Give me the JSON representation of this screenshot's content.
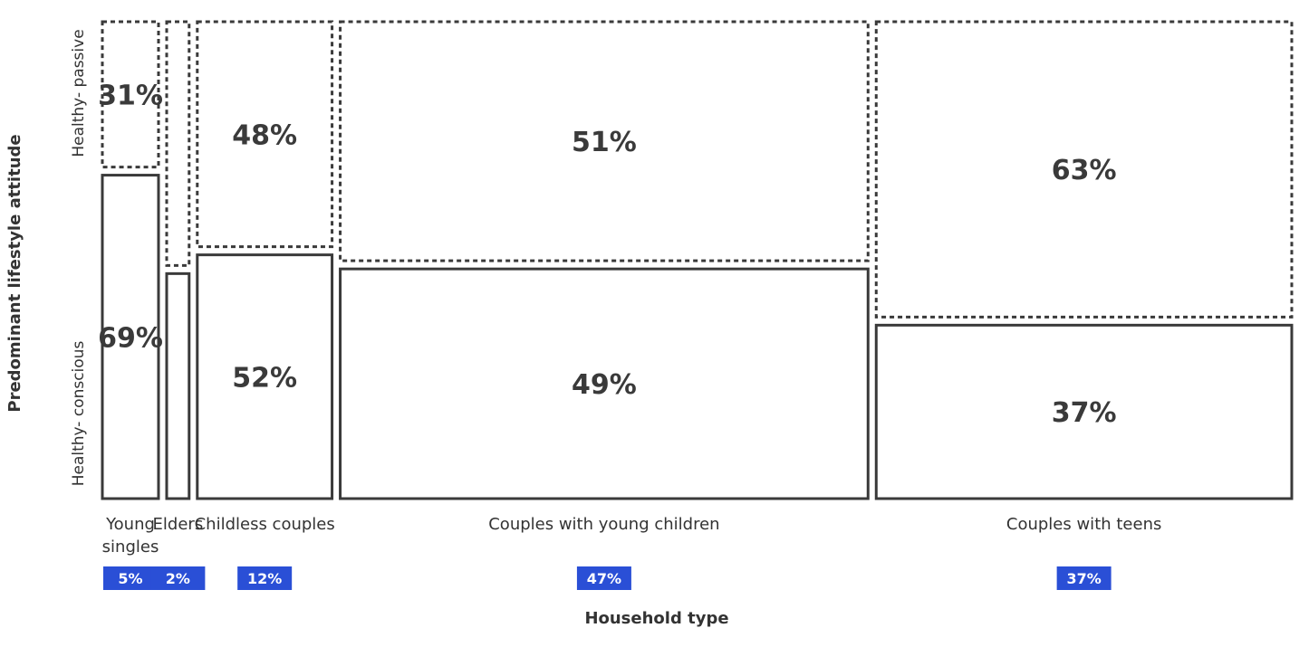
{
  "chart_data": {
    "type": "mosaic",
    "xlabel": "Household type",
    "ylabel": "Predominant lifestyle attitude",
    "rows": [
      "Healthy- conscious",
      "Healthy- passive"
    ],
    "categories": [
      {
        "name": "Young singles",
        "name_lines": [
          "Young",
          "singles"
        ],
        "share": 5,
        "share_label": "5%",
        "conscious": 69,
        "passive": 31
      },
      {
        "name": "Elders",
        "name_lines": [
          "Elders"
        ],
        "share": 2,
        "share_label": "2%",
        "conscious": 48,
        "passive": 52
      },
      {
        "name": "Childless couples",
        "name_lines": [
          "Childless couples"
        ],
        "share": 12,
        "share_label": "12%",
        "conscious": 52,
        "passive": 48
      },
      {
        "name": "Couples with young children",
        "name_lines": [
          "Couples with young children"
        ],
        "share": 47,
        "share_label": "47%",
        "conscious": 49,
        "passive": 51
      },
      {
        "name": "Couples with teens",
        "name_lines": [
          "Couples with teens"
        ],
        "share": 37,
        "share_label": "37%",
        "conscious": 37,
        "passive": 63
      }
    ],
    "cell_labels": {
      "conscious": [
        "69%",
        "",
        "52%",
        "49%",
        "37%"
      ],
      "passive": [
        "31%",
        "",
        "48%",
        "51%",
        "63%"
      ]
    },
    "badge_color": "#2a4fd6",
    "outline_color": "#3a3a3a"
  }
}
